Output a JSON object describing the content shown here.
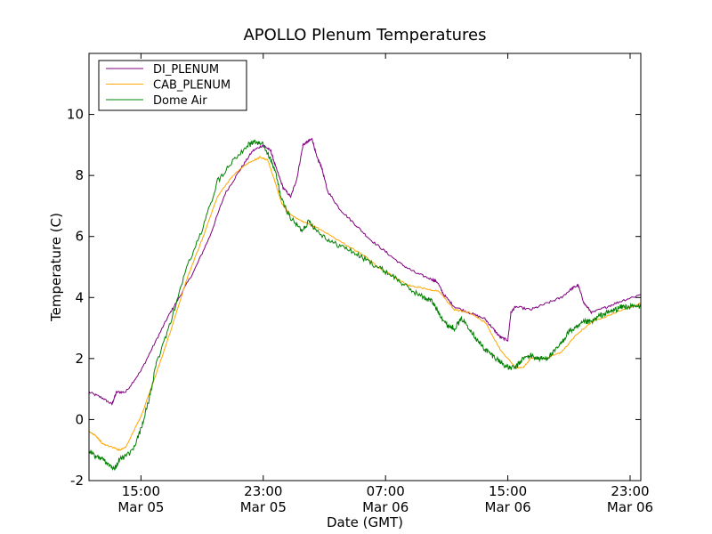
{
  "chart_data": {
    "type": "line",
    "title": "APOLLO Plenum Temperatures",
    "xlabel": "Date (GMT)",
    "ylabel": "Temperature (C)",
    "xlim": [
      11.6,
      47.7
    ],
    "ylim": [
      -2,
      12
    ],
    "grid": false,
    "legend_position": "top-left",
    "yticks": [
      -2,
      0,
      2,
      4,
      6,
      8,
      10
    ],
    "ytick_labels": [
      "-2",
      "0",
      "2",
      "4",
      "6",
      "8",
      "10"
    ],
    "xticks": [
      {
        "hours": 15,
        "time": "15:00",
        "date": "Mar 05"
      },
      {
        "hours": 23,
        "time": "23:00",
        "date": "Mar 05"
      },
      {
        "hours": 31,
        "time": "07:00",
        "date": "Mar 06"
      },
      {
        "hours": 39,
        "time": "15:00",
        "date": "Mar 06"
      },
      {
        "hours": 47,
        "time": "23:00",
        "date": "Mar 06"
      }
    ],
    "x_units": "hours since 00:00 Mar 05 (GMT)",
    "series": [
      {
        "name": "DI_PLENUM",
        "color": "#800080",
        "x": [
          11.6,
          12.5,
          13.1,
          13.4,
          14.0,
          15.0,
          16.0,
          16.8,
          17.5,
          18.5,
          19.5,
          20.5,
          21.5,
          22.3,
          23.0,
          23.5,
          23.8,
          24.3,
          24.8,
          25.2,
          25.6,
          25.9,
          26.2,
          26.5,
          26.8,
          27.2,
          28.0,
          29.0,
          30.0,
          31.0,
          32.0,
          33.0,
          34.0,
          34.4,
          34.8,
          35.5,
          36.5,
          37.5,
          38.0,
          38.5,
          39.0,
          39.2,
          39.5,
          40.5,
          41.5,
          42.5,
          43.2,
          43.6,
          44.0,
          44.5,
          45.5,
          46.5,
          47.7
        ],
        "y": [
          0.9,
          0.7,
          0.5,
          0.9,
          0.9,
          1.6,
          2.6,
          3.4,
          4.0,
          4.9,
          6.0,
          7.4,
          8.2,
          8.8,
          9.0,
          8.8,
          8.3,
          7.6,
          7.3,
          7.9,
          9.0,
          9.1,
          9.2,
          8.6,
          8.3,
          7.5,
          6.9,
          6.4,
          5.9,
          5.5,
          5.1,
          4.8,
          4.6,
          4.5,
          4.1,
          3.7,
          3.5,
          3.3,
          3.0,
          2.7,
          2.6,
          3.5,
          3.7,
          3.6,
          3.8,
          4.0,
          4.3,
          4.4,
          3.8,
          3.5,
          3.7,
          3.9,
          4.1
        ]
      },
      {
        "name": "CAB_PLENUM",
        "color": "#ffa500",
        "x": [
          11.6,
          12.0,
          12.5,
          13.1,
          13.6,
          14.0,
          15.0,
          16.0,
          17.0,
          18.0,
          19.0,
          20.0,
          21.0,
          22.0,
          22.8,
          23.3,
          23.7,
          24.2,
          24.8,
          25.5,
          26.5,
          27.5,
          28.5,
          29.5,
          30.5,
          31.5,
          32.5,
          33.5,
          34.5,
          35.5,
          36.5,
          37.5,
          38.5,
          39.5,
          40.0,
          40.5,
          41.5,
          42.5,
          43.5,
          44.5,
          45.5,
          46.5,
          47.7
        ],
        "y": [
          -0.4,
          -0.5,
          -0.8,
          -0.9,
          -1.0,
          -0.9,
          0.1,
          1.5,
          3.0,
          4.6,
          5.9,
          7.3,
          8.0,
          8.4,
          8.6,
          8.5,
          7.9,
          7.1,
          6.7,
          6.5,
          6.3,
          6.0,
          5.7,
          5.4,
          5.0,
          4.7,
          4.4,
          4.3,
          4.2,
          3.6,
          3.5,
          3.2,
          2.3,
          1.7,
          1.7,
          2.0,
          2.0,
          2.2,
          2.8,
          3.2,
          3.4,
          3.6,
          3.8
        ]
      },
      {
        "name": "Dome Air",
        "color": "#008000",
        "x": [
          11.6,
          12.0,
          12.5,
          13.0,
          13.3,
          13.6,
          14.0,
          14.5,
          15.0,
          15.5,
          16.0,
          17.0,
          18.0,
          19.0,
          20.0,
          21.0,
          22.0,
          22.5,
          23.0,
          23.5,
          23.8,
          24.2,
          24.8,
          25.5,
          26.0,
          26.5,
          27.5,
          28.5,
          29.5,
          30.5,
          31.5,
          32.5,
          33.5,
          34.0,
          34.5,
          35.0,
          35.5,
          36.0,
          36.5,
          37.0,
          37.5,
          38.0,
          38.5,
          39.0,
          39.5,
          40.0,
          40.5,
          41.0,
          41.5,
          42.0,
          42.5,
          43.0,
          43.5,
          44.0,
          44.5,
          45.0,
          45.5,
          46.0,
          46.5,
          47.0,
          47.7
        ],
        "y": [
          -1.0,
          -1.2,
          -1.3,
          -1.5,
          -1.6,
          -1.3,
          -1.2,
          -1.0,
          -0.3,
          0.6,
          1.8,
          3.3,
          5.0,
          6.2,
          7.8,
          8.5,
          9.0,
          9.1,
          9.0,
          8.5,
          8.1,
          7.2,
          6.6,
          6.2,
          6.5,
          6.2,
          5.8,
          5.6,
          5.3,
          5.0,
          4.7,
          4.3,
          4.0,
          3.9,
          3.5,
          3.1,
          3.0,
          3.3,
          3.0,
          2.6,
          2.3,
          2.1,
          1.9,
          1.7,
          1.7,
          2.0,
          2.1,
          2.0,
          2.0,
          2.2,
          2.5,
          2.9,
          3.0,
          3.2,
          3.2,
          3.4,
          3.5,
          3.6,
          3.7,
          3.7,
          3.7
        ]
      }
    ]
  }
}
